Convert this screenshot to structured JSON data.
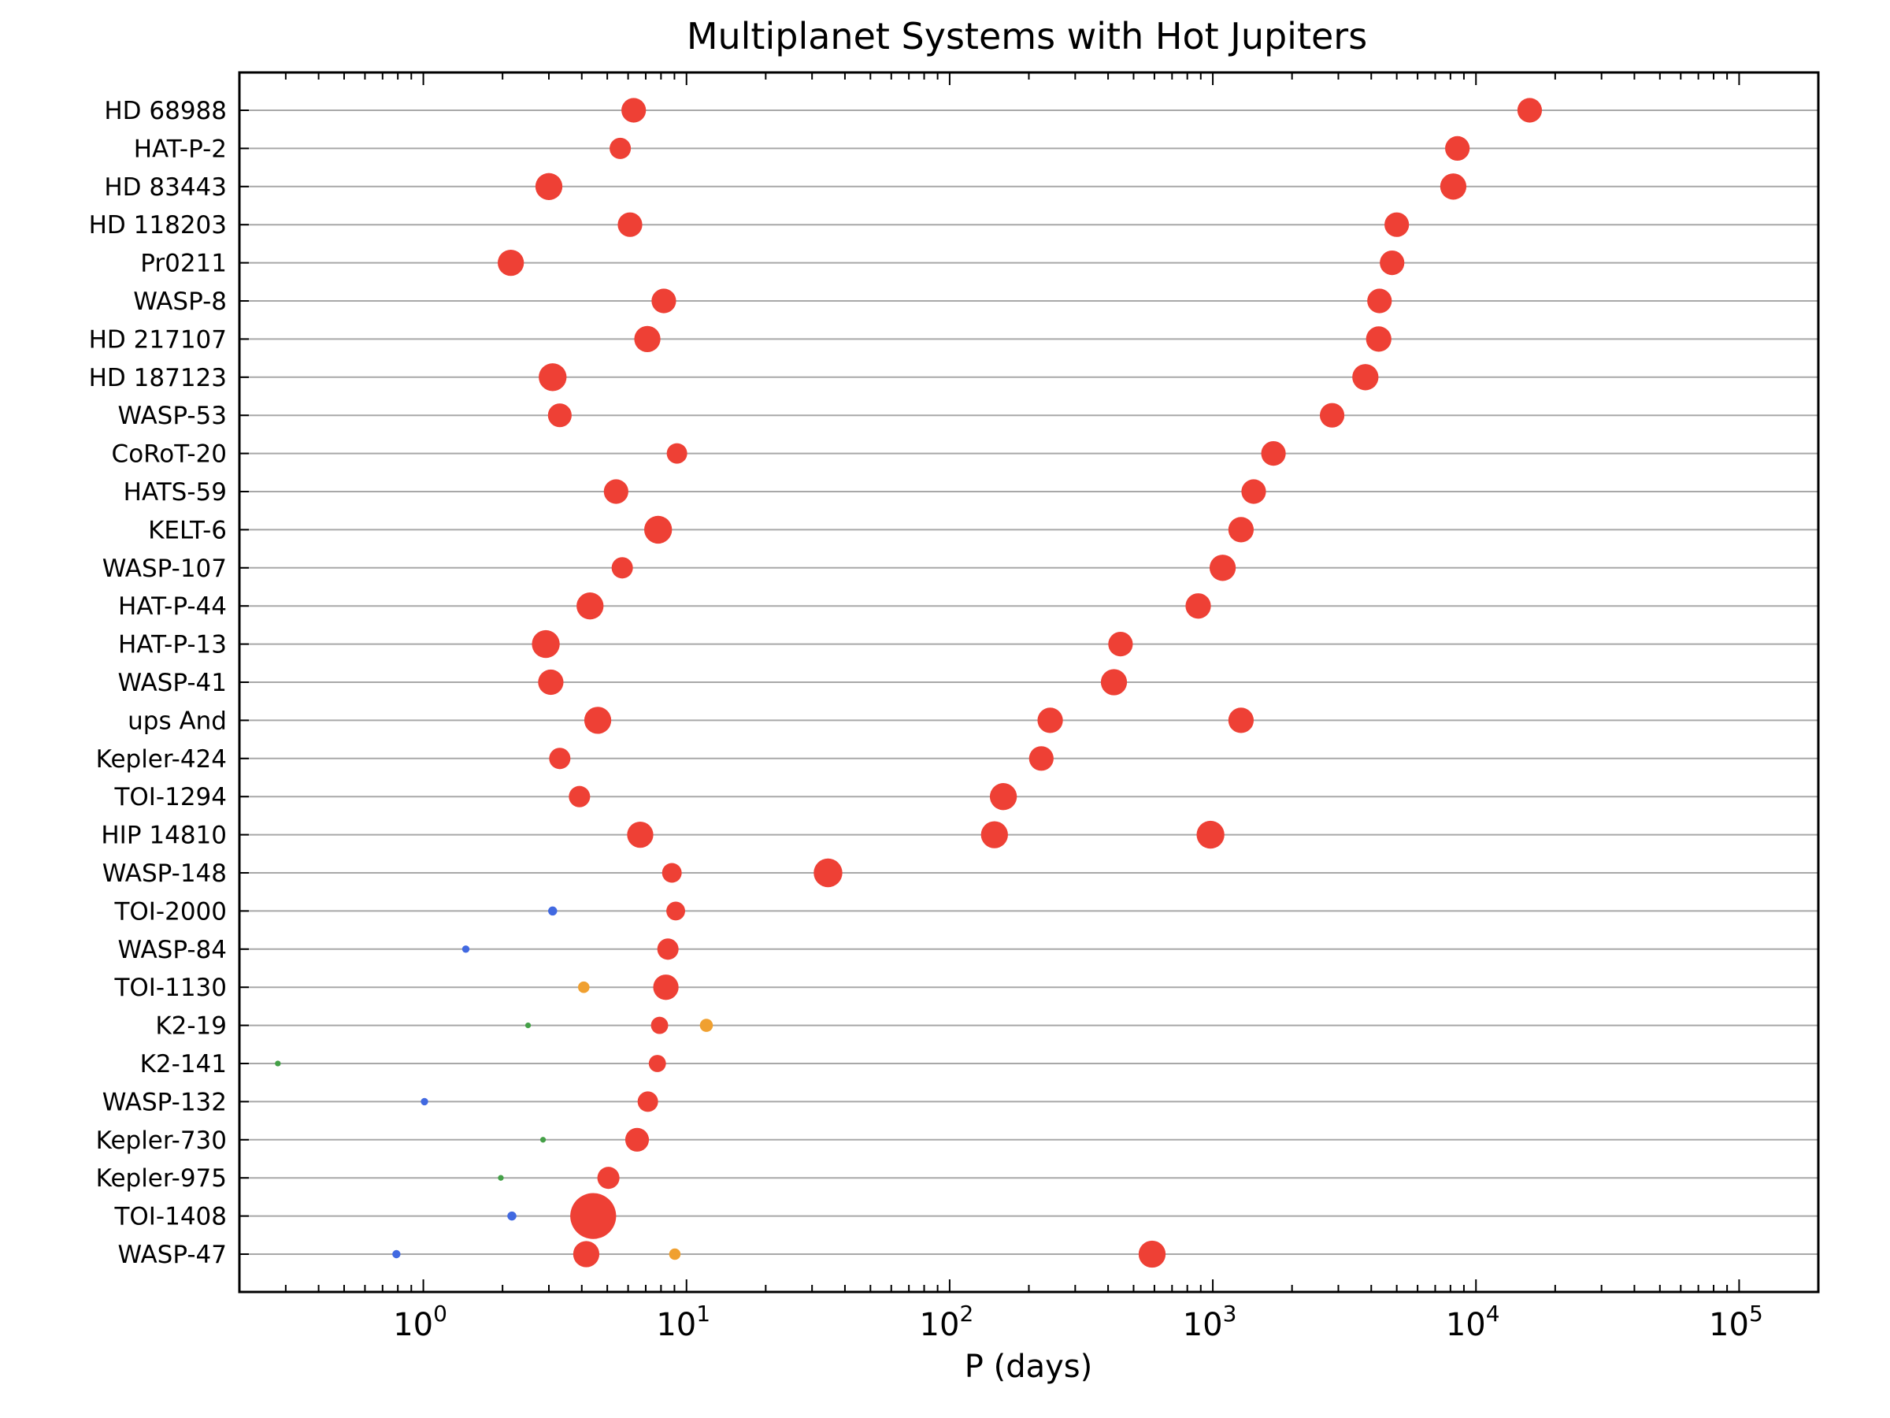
{
  "chart_data": {
    "type": "scatter",
    "title": "Multiplanet Systems with Hot Jupiters",
    "xlabel": "P (days)",
    "ylabel": "",
    "x_scale": "log",
    "xlim": [
      0.2,
      200000
    ],
    "x_ticks": [
      {
        "base": "10",
        "exp": "0"
      },
      {
        "base": "10",
        "exp": "1"
      },
      {
        "base": "10",
        "exp": "2"
      },
      {
        "base": "10",
        "exp": "3"
      },
      {
        "base": "10",
        "exp": "4"
      },
      {
        "base": "10",
        "exp": "5"
      }
    ],
    "grid": "horizontal lines at each system",
    "colors": {
      "red": "#ee4035",
      "blue": "#4169e1",
      "orange": "#f0a030",
      "green": "#44a047"
    },
    "systems": [
      {
        "name": "HD 68988",
        "planets": [
          {
            "period": 6.3,
            "size": 3,
            "color": "red"
          },
          {
            "period": 16000,
            "size": 3,
            "color": "red"
          }
        ]
      },
      {
        "name": "HAT-P-2",
        "planets": [
          {
            "period": 5.6,
            "size": 2.6,
            "color": "red"
          },
          {
            "period": 8500,
            "size": 3,
            "color": "red"
          }
        ]
      },
      {
        "name": "HD 83443",
        "planets": [
          {
            "period": 3.0,
            "size": 3.3,
            "color": "red"
          },
          {
            "period": 8200,
            "size": 3.2,
            "color": "red"
          }
        ]
      },
      {
        "name": "HD 118203",
        "planets": [
          {
            "period": 6.1,
            "size": 3,
            "color": "red"
          },
          {
            "period": 5000,
            "size": 3,
            "color": "red"
          }
        ]
      },
      {
        "name": "Pr0211",
        "planets": [
          {
            "period": 2.15,
            "size": 3.2,
            "color": "red"
          },
          {
            "period": 4800,
            "size": 3,
            "color": "red"
          }
        ]
      },
      {
        "name": "WASP-8",
        "planets": [
          {
            "period": 8.2,
            "size": 3,
            "color": "red"
          },
          {
            "period": 4300,
            "size": 3,
            "color": "red"
          }
        ]
      },
      {
        "name": "HD 217107",
        "planets": [
          {
            "period": 7.1,
            "size": 3.2,
            "color": "red"
          },
          {
            "period": 4270,
            "size": 3.1,
            "color": "red"
          }
        ]
      },
      {
        "name": "HD 187123",
        "planets": [
          {
            "period": 3.1,
            "size": 3.4,
            "color": "red"
          },
          {
            "period": 3800,
            "size": 3.2,
            "color": "red"
          }
        ]
      },
      {
        "name": "WASP-53",
        "planets": [
          {
            "period": 3.3,
            "size": 2.9,
            "color": "red"
          },
          {
            "period": 2840,
            "size": 3,
            "color": "red"
          }
        ]
      },
      {
        "name": "CoRoT-20",
        "planets": [
          {
            "period": 9.2,
            "size": 2.5,
            "color": "red"
          },
          {
            "period": 1700,
            "size": 3,
            "color": "red"
          }
        ]
      },
      {
        "name": "HATS-59",
        "planets": [
          {
            "period": 5.4,
            "size": 3,
            "color": "red"
          },
          {
            "period": 1430,
            "size": 3,
            "color": "red"
          }
        ]
      },
      {
        "name": "KELT-6",
        "planets": [
          {
            "period": 7.8,
            "size": 3.4,
            "color": "red"
          },
          {
            "period": 1280,
            "size": 3.1,
            "color": "red"
          }
        ]
      },
      {
        "name": "WASP-107",
        "planets": [
          {
            "period": 5.7,
            "size": 2.6,
            "color": "red"
          },
          {
            "period": 1090,
            "size": 3.2,
            "color": "red"
          }
        ]
      },
      {
        "name": "HAT-P-44",
        "planets": [
          {
            "period": 4.3,
            "size": 3.3,
            "color": "red"
          },
          {
            "period": 880,
            "size": 3.1,
            "color": "red"
          }
        ]
      },
      {
        "name": "HAT-P-13",
        "planets": [
          {
            "period": 2.92,
            "size": 3.4,
            "color": "red"
          },
          {
            "period": 446,
            "size": 3,
            "color": "red"
          }
        ]
      },
      {
        "name": "WASP-41",
        "planets": [
          {
            "period": 3.05,
            "size": 3.1,
            "color": "red"
          },
          {
            "period": 421,
            "size": 3.2,
            "color": "red"
          }
        ]
      },
      {
        "name": "ups And",
        "planets": [
          {
            "period": 4.6,
            "size": 3.3,
            "color": "red"
          },
          {
            "period": 241,
            "size": 3.1,
            "color": "red"
          },
          {
            "period": 1280,
            "size": 3.1,
            "color": "red"
          }
        ]
      },
      {
        "name": "Kepler-424",
        "planets": [
          {
            "period": 3.3,
            "size": 2.6,
            "color": "red"
          },
          {
            "period": 223,
            "size": 3,
            "color": "red"
          }
        ]
      },
      {
        "name": "TOI-1294",
        "planets": [
          {
            "period": 3.92,
            "size": 2.6,
            "color": "red"
          },
          {
            "period": 160,
            "size": 3.3,
            "color": "red"
          }
        ]
      },
      {
        "name": "HIP 14810",
        "planets": [
          {
            "period": 6.67,
            "size": 3.2,
            "color": "red"
          },
          {
            "period": 148,
            "size": 3.3,
            "color": "red"
          },
          {
            "period": 980,
            "size": 3.4,
            "color": "red"
          }
        ]
      },
      {
        "name": "WASP-148",
        "planets": [
          {
            "period": 8.8,
            "size": 2.4,
            "color": "red"
          },
          {
            "period": 34.5,
            "size": 3.5,
            "color": "red"
          }
        ]
      },
      {
        "name": "TOI-2000",
        "planets": [
          {
            "period": 3.1,
            "size": 1.1,
            "color": "blue"
          },
          {
            "period": 9.1,
            "size": 2.3,
            "color": "red"
          }
        ]
      },
      {
        "name": "WASP-84",
        "planets": [
          {
            "period": 1.45,
            "size": 0.9,
            "color": "blue"
          },
          {
            "period": 8.5,
            "size": 2.6,
            "color": "red"
          }
        ]
      },
      {
        "name": "TOI-1130",
        "planets": [
          {
            "period": 4.07,
            "size": 1.4,
            "color": "orange"
          },
          {
            "period": 8.35,
            "size": 3.1,
            "color": "red"
          }
        ]
      },
      {
        "name": "K2-19",
        "planets": [
          {
            "period": 2.5,
            "size": 0.7,
            "color": "green"
          },
          {
            "period": 7.9,
            "size": 2.1,
            "color": "red"
          },
          {
            "period": 11.9,
            "size": 1.6,
            "color": "orange"
          }
        ]
      },
      {
        "name": "K2-141",
        "planets": [
          {
            "period": 0.28,
            "size": 0.7,
            "color": "green"
          },
          {
            "period": 7.75,
            "size": 2.1,
            "color": "red"
          }
        ]
      },
      {
        "name": "WASP-132",
        "planets": [
          {
            "period": 1.01,
            "size": 0.9,
            "color": "blue"
          },
          {
            "period": 7.13,
            "size": 2.5,
            "color": "red"
          }
        ]
      },
      {
        "name": "Kepler-730",
        "planets": [
          {
            "period": 2.85,
            "size": 0.7,
            "color": "green"
          },
          {
            "period": 6.49,
            "size": 2.9,
            "color": "red"
          }
        ]
      },
      {
        "name": "Kepler-975",
        "planets": [
          {
            "period": 1.97,
            "size": 0.7,
            "color": "green"
          },
          {
            "period": 5.05,
            "size": 2.7,
            "color": "red"
          }
        ]
      },
      {
        "name": "TOI-1408",
        "planets": [
          {
            "period": 2.17,
            "size": 1.1,
            "color": "blue"
          },
          {
            "period": 4.42,
            "size": 5.6,
            "color": "red"
          }
        ]
      },
      {
        "name": "WASP-47",
        "planets": [
          {
            "period": 0.79,
            "size": 1.0,
            "color": "blue"
          },
          {
            "period": 4.16,
            "size": 3.2,
            "color": "red"
          },
          {
            "period": 9.03,
            "size": 1.4,
            "color": "orange"
          },
          {
            "period": 588,
            "size": 3.3,
            "color": "red"
          }
        ]
      }
    ]
  }
}
